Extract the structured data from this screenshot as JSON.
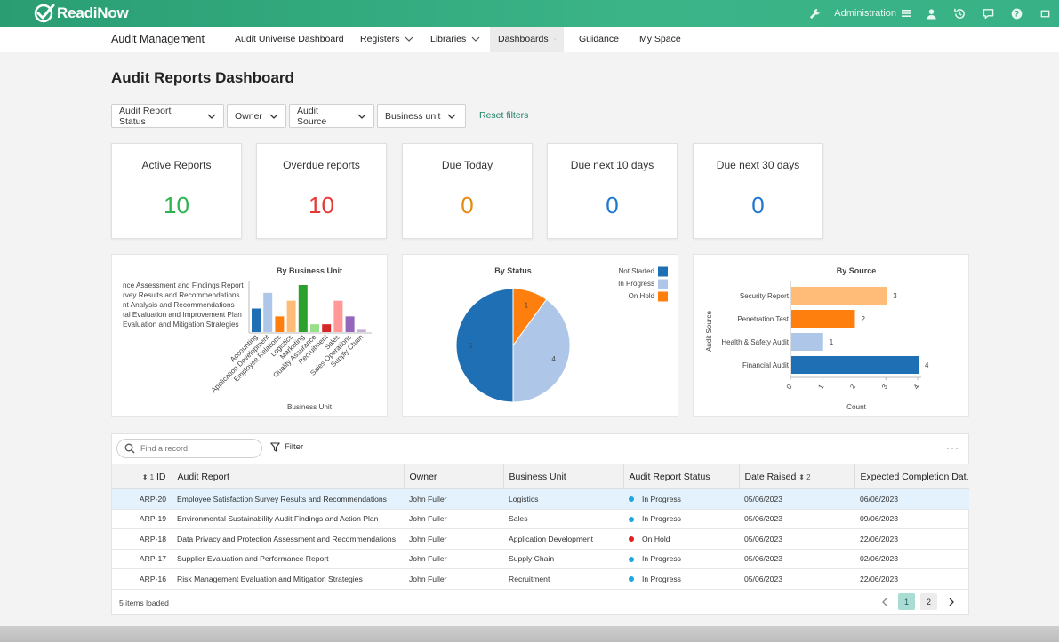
{
  "app": {
    "logo_text": "ReadiNow",
    "admin_label": "Administration"
  },
  "nav": {
    "title": "Audit Management",
    "items": [
      {
        "label": "Audit Universe Dashboard",
        "dropdown": false
      },
      {
        "label": "Registers",
        "dropdown": true
      },
      {
        "label": "Libraries",
        "dropdown": true
      },
      {
        "label": "Dashboards",
        "dropdown": true,
        "active": true
      },
      {
        "label": "Guidance",
        "dropdown": false
      },
      {
        "label": "My Space",
        "dropdown": false
      }
    ]
  },
  "page": {
    "title": "Audit Reports Dashboard"
  },
  "filters": {
    "items": [
      "Audit Report Status",
      "Owner",
      "Audit Source",
      "Business unit"
    ],
    "reset_label": "Reset filters"
  },
  "kpis": [
    {
      "label": "Active Reports",
      "value": "10",
      "color": "#2eb24f"
    },
    {
      "label": "Overdue reports",
      "value": "10",
      "color": "#e53935"
    },
    {
      "label": "Due Today",
      "value": "0",
      "color": "#e58a12"
    },
    {
      "label": "Due next 10 days",
      "value": "0",
      "color": "#1f77d0"
    },
    {
      "label": "Due next 30 days",
      "value": "0",
      "color": "#1f77d0"
    }
  ],
  "chart_data": [
    {
      "type": "bar",
      "title": "By Business Unit",
      "xlabel": "Business Unit",
      "ylabel": "",
      "categories": [
        "Accounting",
        "Application Development",
        "Employee Relations",
        "Logistics",
        "Marketing",
        "Quality Assurance",
        "Recruitment",
        "Sales",
        "Sales Operations",
        "Supply Chain"
      ],
      "values": [
        3,
        5,
        2,
        4,
        6,
        1,
        1,
        4,
        2,
        0.3
      ],
      "colors": [
        "#1f6fb4",
        "#aec7e8",
        "#ff7f0e",
        "#ffbb78",
        "#2ca02c",
        "#98df8a",
        "#d62728",
        "#ff9896",
        "#9467bd",
        "#c5b0d5"
      ],
      "legend": [
        "nce Assessment and Findings Report",
        "rvey Results and Recommendations",
        "nt Analysis and Recommendations",
        "tal Evaluation and Improvement Plan",
        "Evaluation and Mitigation Strategies"
      ]
    },
    {
      "type": "pie",
      "title": "By Status",
      "slices": [
        {
          "label": "Not Started",
          "value": 5,
          "color": "#1f6fb4"
        },
        {
          "label": "In Progress",
          "value": 4,
          "color": "#aec7e8"
        },
        {
          "label": "On Hold",
          "value": 1,
          "color": "#ff7f0e"
        }
      ],
      "legend_position": "top-right"
    },
    {
      "type": "bar",
      "orientation": "horizontal",
      "title": "By Source",
      "xlabel": "Count",
      "ylabel": "Audit Source",
      "categories": [
        "Security Report",
        "Penetration Test",
        "Health & Safety Audit",
        "Financial Audit"
      ],
      "values": [
        3,
        2,
        1,
        4
      ],
      "colors": [
        "#ffbb78",
        "#ff7f0e",
        "#aec7e8",
        "#1f6fb4"
      ],
      "xticks": [
        "0",
        "1",
        "2",
        "3",
        "4"
      ],
      "xlim": [
        0,
        4
      ]
    }
  ],
  "grid": {
    "search_placeholder": "Find a record",
    "filter_label": "Filter",
    "more_label": "···",
    "columns": [
      {
        "label": "ID",
        "sort_order": "1"
      },
      {
        "label": "Audit Report"
      },
      {
        "label": "Owner"
      },
      {
        "label": "Business Unit"
      },
      {
        "label": "Audit Report Status"
      },
      {
        "label": "Date Raised",
        "sort_order": "2"
      },
      {
        "label": "Expected Completion Dat..."
      }
    ],
    "rows": [
      {
        "id": "ARP-20",
        "report": "Employee Satisfaction Survey Results and Recommendations",
        "owner": "John Fuller",
        "unit": "Logistics",
        "status": "In Progress",
        "status_color": "#1fa5e0",
        "raised": "05/06/2023",
        "expected": "06/06/2023",
        "selected": true
      },
      {
        "id": "ARP-19",
        "report": "Environmental Sustainability Audit Findings and Action Plan",
        "owner": "John Fuller",
        "unit": "Sales",
        "status": "In Progress",
        "status_color": "#1fa5e0",
        "raised": "05/06/2023",
        "expected": "09/06/2023"
      },
      {
        "id": "ARP-18",
        "report": "Data Privacy and Protection Assessment and Recommendations",
        "owner": "John Fuller",
        "unit": "Application Development",
        "status": "On Hold",
        "status_color": "#e01f1f",
        "raised": "05/06/2023",
        "expected": "22/06/2023"
      },
      {
        "id": "ARP-17",
        "report": "Supplier Evaluation and Performance Report",
        "owner": "John Fuller",
        "unit": "Supply Chain",
        "status": "In Progress",
        "status_color": "#1fa5e0",
        "raised": "05/06/2023",
        "expected": "02/06/2023"
      },
      {
        "id": "ARP-16",
        "report": "Risk Management Evaluation and Mitigation Strategies",
        "owner": "John Fuller",
        "unit": "Recruitment",
        "status": "In Progress",
        "status_color": "#1fa5e0",
        "raised": "05/06/2023",
        "expected": "22/06/2023"
      }
    ],
    "footer_text": "5 items loaded",
    "pages": [
      "1",
      "2"
    ],
    "current_page": "1"
  }
}
